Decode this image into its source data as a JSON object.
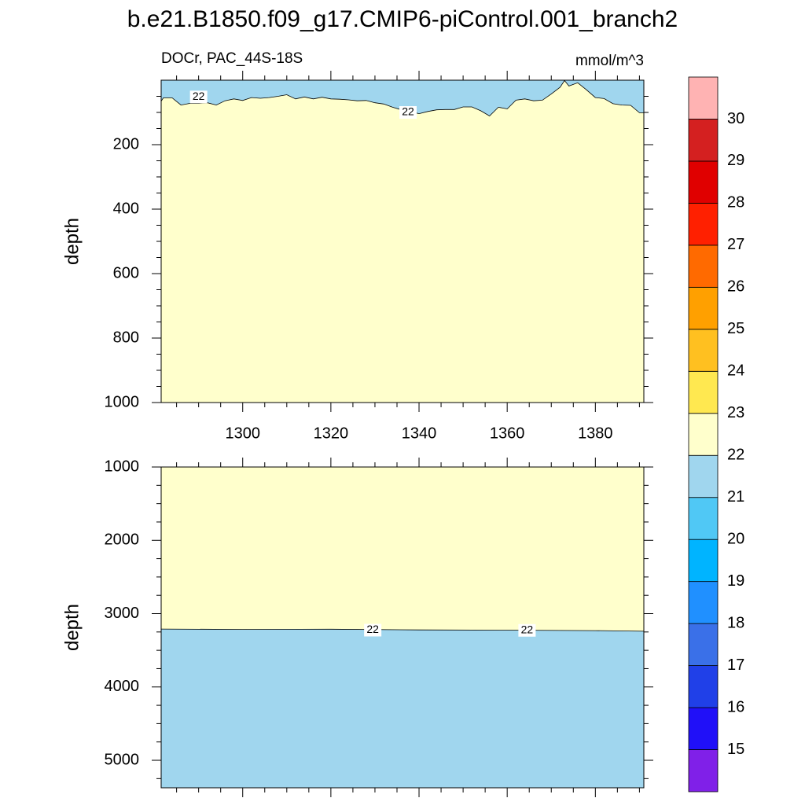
{
  "title": "b.e21.B1850.f09_g17.CMIP6-piControl.001_branch2",
  "chart_data": [
    {
      "type": "contour",
      "subtitle": "DOCr, PAC_44S-18S",
      "units": "mmol/m^3",
      "ylabel": "depth",
      "xlim": [
        1281.5,
        1391
      ],
      "xticks": [
        1300,
        1320,
        1340,
        1360,
        1380
      ],
      "xminorticks": [
        1285,
        1290,
        1295,
        1305,
        1310,
        1315,
        1325,
        1330,
        1335,
        1345,
        1350,
        1355,
        1365,
        1370,
        1375,
        1385,
        1390
      ],
      "show_xtick_labels": true,
      "ylim": [
        0,
        1000
      ],
      "y_inverted": true,
      "yticks": [
        200,
        400,
        600,
        800,
        1000
      ],
      "yminorticks": [
        50,
        100,
        150,
        250,
        300,
        350,
        450,
        500,
        550,
        650,
        700,
        750,
        850,
        900,
        950
      ],
      "contour_level": 22,
      "shallow_color": "#a0d6ee",
      "deep_color": "#ffffcc",
      "x": [
        1281.5,
        1282,
        1284,
        1286,
        1288,
        1290,
        1292,
        1294,
        1296,
        1298,
        1300,
        1302,
        1304,
        1306,
        1308,
        1310,
        1312,
        1314,
        1316,
        1318,
        1320,
        1322,
        1324,
        1326,
        1328,
        1330,
        1332,
        1334,
        1336,
        1338,
        1340,
        1342,
        1344,
        1346,
        1348,
        1350,
        1352,
        1354,
        1356,
        1358,
        1360,
        1362,
        1364,
        1366,
        1368,
        1370,
        1372,
        1373,
        1374,
        1376,
        1378,
        1380,
        1382,
        1384,
        1386,
        1388,
        1390,
        1391
      ],
      "values": [
        65,
        55,
        55,
        77,
        72,
        72,
        70,
        77,
        64,
        58,
        63,
        54,
        56,
        54,
        50,
        45,
        58,
        52,
        58,
        53,
        58,
        59,
        61,
        64,
        63,
        70,
        74,
        84,
        92,
        97,
        104,
        97,
        92,
        91,
        91,
        83,
        83,
        95,
        111,
        84,
        89,
        62,
        58,
        64,
        62,
        43,
        22,
        1,
        18,
        8,
        30,
        54,
        57,
        73,
        77,
        78,
        101,
        101
      ],
      "contour_labels": [
        {
          "text": "22",
          "x": 1290,
          "y": 52
        },
        {
          "text": "22",
          "x": 1337.5,
          "y": 100
        }
      ]
    },
    {
      "type": "contour",
      "ylabel": "depth",
      "xlim": [
        1281.5,
        1391
      ],
      "xticks": [
        1300,
        1320,
        1340,
        1360,
        1380
      ],
      "xminorticks": [
        1285,
        1290,
        1295,
        1305,
        1310,
        1315,
        1325,
        1330,
        1335,
        1345,
        1350,
        1355,
        1365,
        1370,
        1375,
        1385,
        1390
      ],
      "show_xtick_labels": false,
      "ylim": [
        1000,
        5375
      ],
      "y_inverted": true,
      "yticks": [
        1000,
        2000,
        3000,
        4000,
        5000
      ],
      "yminorticks": [
        1250,
        1500,
        1750,
        2250,
        2500,
        2750,
        3250,
        3500,
        3750,
        4250,
        4500,
        4750,
        5250
      ],
      "contour_level": 22,
      "shallow_color": "#ffffcc",
      "deep_color": "#a0d6ee",
      "x": [
        1281.5,
        1300,
        1320,
        1340,
        1360,
        1380,
        1391
      ],
      "values": [
        3210,
        3215,
        3212,
        3222,
        3225,
        3232,
        3240
      ],
      "contour_labels": [
        {
          "text": "22",
          "x": 1329.5,
          "y": 3225
        },
        {
          "text": "22",
          "x": 1364.5,
          "y": 3228
        }
      ]
    }
  ],
  "colorbar": {
    "levels": [
      15,
      16,
      17,
      18,
      19,
      20,
      21,
      22,
      23,
      24,
      25,
      26,
      27,
      28,
      29,
      30
    ],
    "colors": [
      "#8020e8",
      "#2010f8",
      "#2040e8",
      "#3a70e8",
      "#2090ff",
      "#00b4ff",
      "#50c8f5",
      "#a0d6ee",
      "#ffffcc",
      "#ffe850",
      "#ffc020",
      "#ffa000",
      "#ff6a00",
      "#ff2000",
      "#e00000",
      "#d42020",
      "#ffb3b3"
    ]
  }
}
